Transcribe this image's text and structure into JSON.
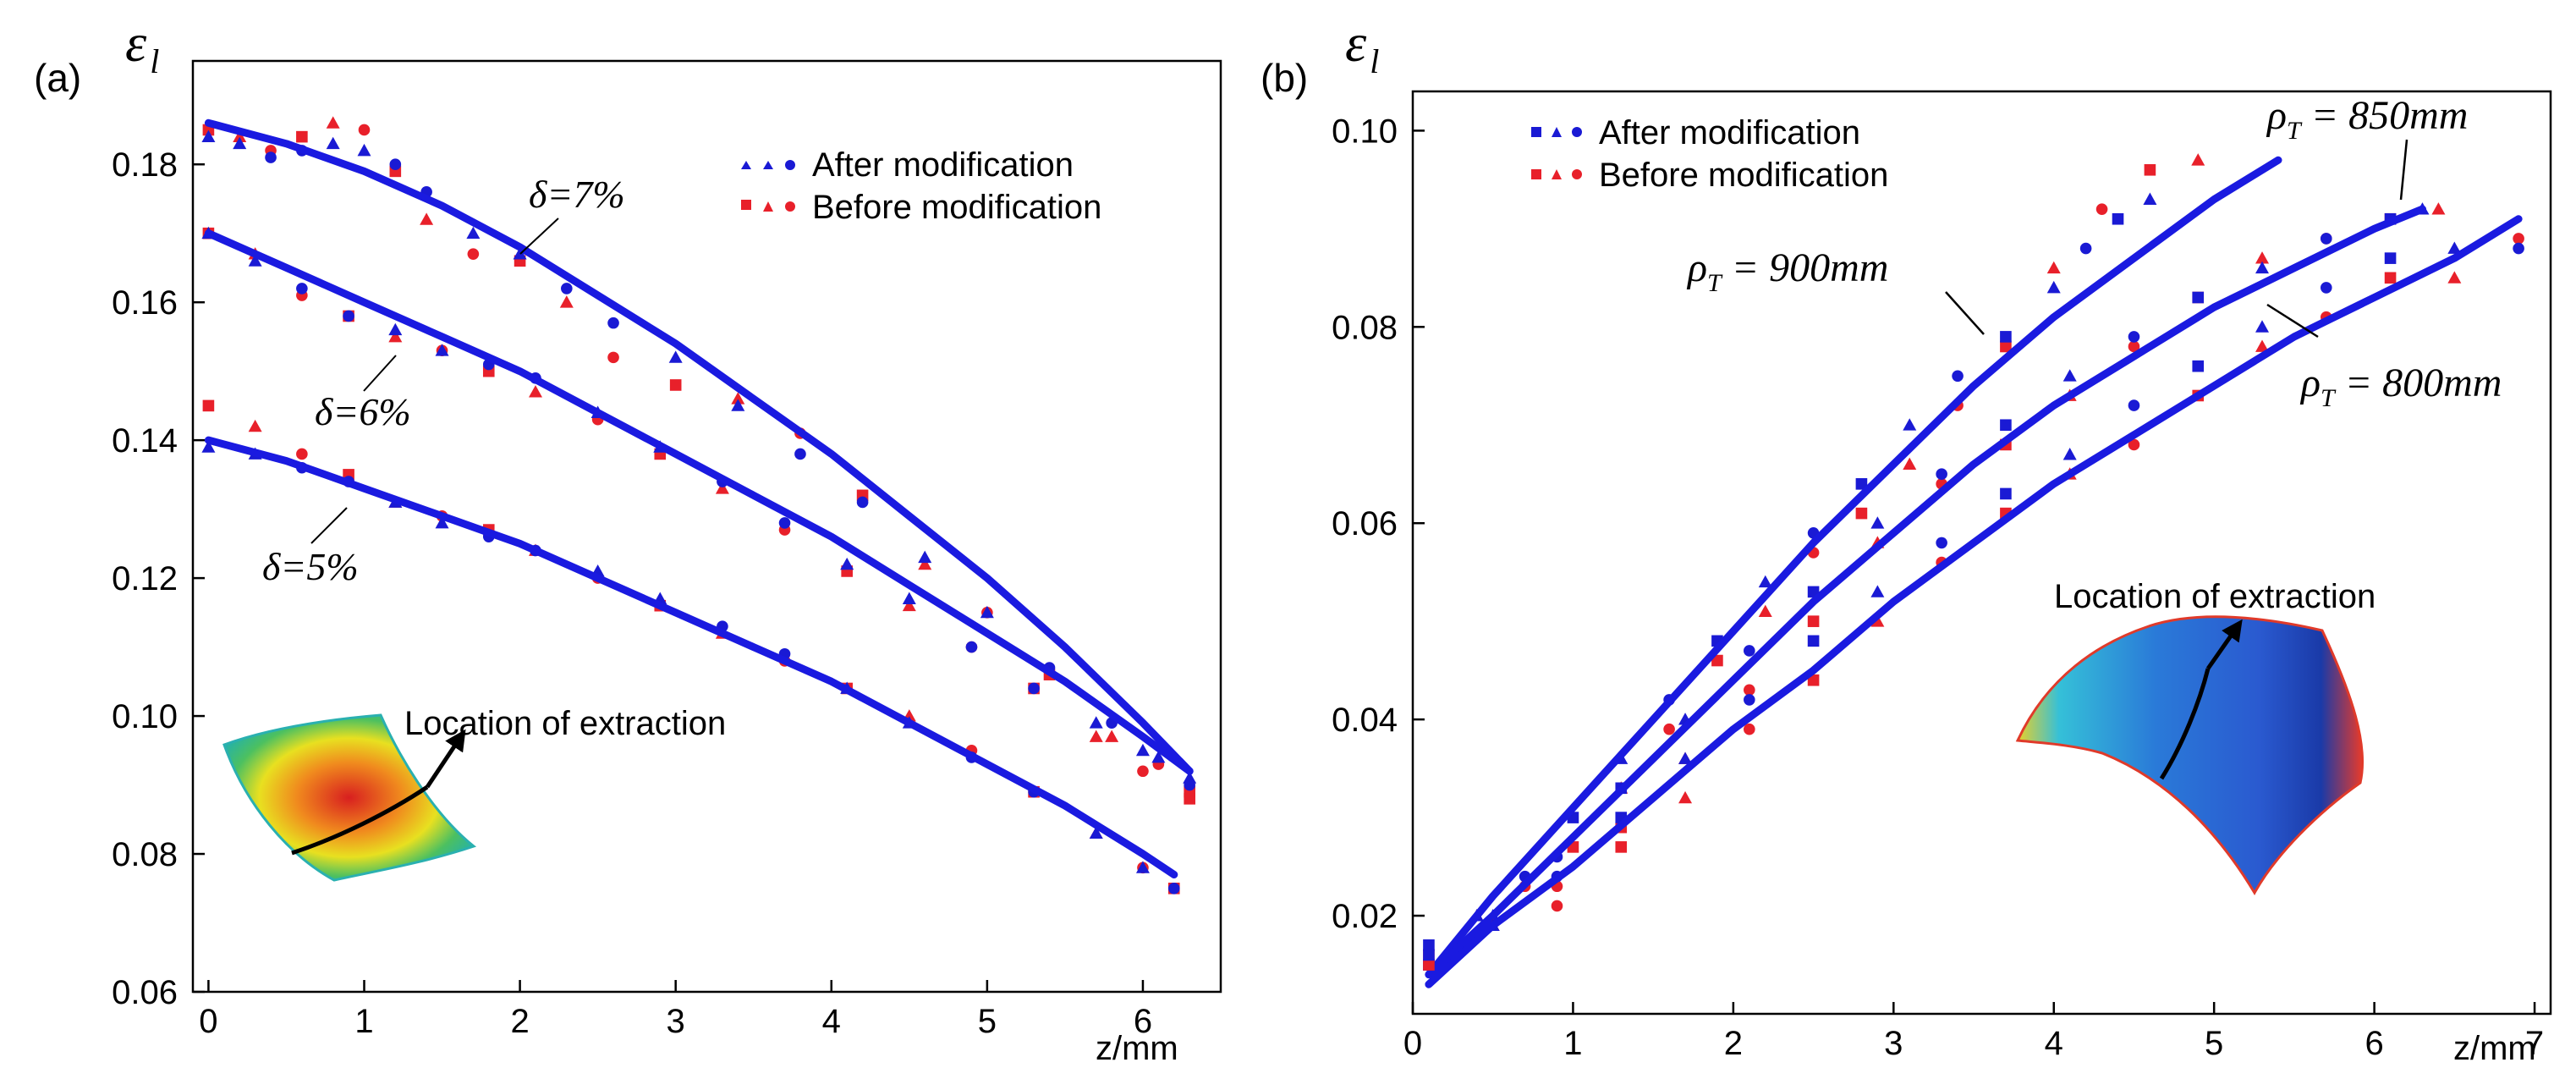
{
  "colors": {
    "blue": "#1a1ad4",
    "red": "#e8202a",
    "fit": "#1a1ae0",
    "axis": "#000000"
  },
  "chart_data": [
    {
      "type": "scatter",
      "panel_label": "(a)",
      "ylabel": "ε",
      "ylabel_sub": "l",
      "xlabel": "z/mm",
      "xlim": [
        -0.1,
        6.5
      ],
      "ylim": [
        0.06,
        0.195
      ],
      "xticks": [
        "0",
        "1",
        "2",
        "3",
        "4",
        "5",
        "6"
      ],
      "xtick_values": [
        0,
        1,
        2,
        3,
        4,
        5,
        6
      ],
      "yticks": [
        "0.06",
        "0.08",
        "0.10",
        "0.12",
        "0.14",
        "0.16",
        "0.18"
      ],
      "ytick_values": [
        0.06,
        0.08,
        0.1,
        0.12,
        0.14,
        0.16,
        0.18
      ],
      "legend": {
        "placement": "top-right",
        "entries": [
          {
            "label": "After modification",
            "color": "blue"
          },
          {
            "label": "Before modification",
            "color": "red"
          }
        ]
      },
      "annotations": [
        "δ=7%",
        "δ=6%",
        "δ=5%"
      ],
      "inset_label": "Location of extraction",
      "series": [
        {
          "name": "δ=7%",
          "fit": {
            "x": [
              0,
              0.5,
              1,
              1.5,
              2,
              2.5,
              3,
              3.5,
              4,
              4.5,
              5,
              5.5,
              6,
              6.3
            ],
            "y": [
              0.186,
              0.183,
              0.179,
              0.174,
              0.168,
              0.161,
              0.154,
              0.146,
              0.138,
              0.129,
              0.12,
              0.11,
              0.099,
              0.092
            ]
          },
          "after": {
            "x": [
              0,
              0.2,
              0.4,
              0.6,
              0.8,
              1.0,
              1.2,
              1.4,
              1.7,
              2.0,
              2.3,
              2.6,
              3.0,
              3.4,
              3.8,
              4.2,
              4.6,
              5.0,
              5.4,
              5.8,
              6.1,
              6.3
            ],
            "y": [
              0.184,
              0.183,
              0.181,
              0.182,
              0.183,
              0.182,
              0.18,
              0.176,
              0.17,
              0.167,
              0.162,
              0.157,
              0.152,
              0.145,
              0.138,
              0.131,
              0.123,
              0.115,
              0.107,
              0.099,
              0.094,
              0.091
            ]
          },
          "before": {
            "x": [
              0,
              0.2,
              0.4,
              0.6,
              0.8,
              1.0,
              1.2,
              1.4,
              1.7,
              2.0,
              2.3,
              2.6,
              3.0,
              3.4,
              3.8,
              4.2,
              4.6,
              5.0,
              5.4,
              5.8,
              6.1,
              6.3
            ],
            "y": [
              0.185,
              0.184,
              0.182,
              0.184,
              0.186,
              0.185,
              0.179,
              0.172,
              0.167,
              0.166,
              0.16,
              0.152,
              0.148,
              0.146,
              0.141,
              0.132,
              0.122,
              0.115,
              0.106,
              0.097,
              0.093,
              0.089
            ]
          }
        },
        {
          "name": "δ=6%",
          "fit": {
            "x": [
              0,
              0.5,
              1,
              1.5,
              2,
              2.5,
              3,
              3.5,
              4,
              4.5,
              5,
              5.5,
              6,
              6.3
            ],
            "y": [
              0.17,
              0.165,
              0.16,
              0.155,
              0.15,
              0.144,
              0.138,
              0.132,
              0.126,
              0.119,
              0.112,
              0.105,
              0.097,
              0.092
            ]
          },
          "after": {
            "x": [
              0,
              0.3,
              0.6,
              0.9,
              1.2,
              1.5,
              1.8,
              2.1,
              2.5,
              2.9,
              3.3,
              3.7,
              4.1,
              4.5,
              4.9,
              5.3,
              5.7,
              6.0,
              6.3
            ],
            "y": [
              0.17,
              0.166,
              0.162,
              0.158,
              0.156,
              0.153,
              0.151,
              0.149,
              0.144,
              0.139,
              0.134,
              0.128,
              0.122,
              0.117,
              0.11,
              0.104,
              0.099,
              0.095,
              0.09
            ]
          },
          "before": {
            "x": [
              0,
              0.3,
              0.6,
              0.9,
              1.2,
              1.5,
              1.8,
              2.1,
              2.5,
              2.9,
              3.3,
              3.7,
              4.1,
              4.5,
              4.9,
              5.3,
              5.7,
              6.0,
              6.3
            ],
            "y": [
              0.17,
              0.167,
              0.161,
              0.158,
              0.155,
              0.153,
              0.15,
              0.147,
              0.143,
              0.138,
              0.133,
              0.127,
              0.121,
              0.116,
              0.11,
              0.104,
              0.097,
              0.092,
              0.088
            ]
          }
        },
        {
          "name": "δ=5%",
          "fit": {
            "x": [
              0,
              0.5,
              1,
              1.5,
              2,
              2.5,
              3,
              3.5,
              4,
              4.5,
              5,
              5.5,
              6,
              6.2
            ],
            "y": [
              0.14,
              0.137,
              0.133,
              0.129,
              0.125,
              0.12,
              0.115,
              0.11,
              0.105,
              0.099,
              0.093,
              0.087,
              0.08,
              0.077
            ]
          },
          "after": {
            "x": [
              0,
              0.3,
              0.6,
              0.9,
              1.2,
              1.5,
              1.8,
              2.1,
              2.5,
              2.9,
              3.3,
              3.7,
              4.1,
              4.5,
              4.9,
              5.3,
              5.7,
              6.0,
              6.2
            ],
            "y": [
              0.139,
              0.138,
              0.136,
              0.134,
              0.131,
              0.128,
              0.126,
              0.124,
              0.121,
              0.117,
              0.113,
              0.109,
              0.104,
              0.099,
              0.094,
              0.089,
              0.083,
              0.078,
              0.075
            ]
          },
          "before": {
            "x": [
              0,
              0.3,
              0.6,
              0.9,
              1.2,
              1.5,
              1.8,
              2.1,
              2.5,
              2.9,
              3.3,
              3.7,
              4.1,
              4.5,
              4.9,
              5.3,
              5.7,
              6.0,
              6.2
            ],
            "y": [
              0.145,
              0.142,
              0.138,
              0.135,
              0.131,
              0.129,
              0.127,
              0.124,
              0.12,
              0.116,
              0.112,
              0.108,
              0.104,
              0.1,
              0.095,
              0.089,
              0.083,
              0.078,
              0.075
            ]
          }
        }
      ]
    },
    {
      "type": "scatter",
      "panel_label": "(b)",
      "ylabel": "ε",
      "ylabel_sub": "l",
      "xlabel": "z/mm",
      "xlim": [
        0,
        7.1
      ],
      "ylim": [
        0.01,
        0.104
      ],
      "xticks": [
        "0",
        "1",
        "2",
        "3",
        "4",
        "5",
        "6",
        "7"
      ],
      "xtick_values": [
        0,
        1,
        2,
        3,
        4,
        5,
        6,
        7
      ],
      "yticks": [
        "0.02",
        "0.04",
        "0.06",
        "0.08",
        "0.10"
      ],
      "ytick_values": [
        0.02,
        0.04,
        0.06,
        0.08,
        0.1
      ],
      "legend": {
        "placement": "top-left",
        "entries": [
          {
            "label": "After modification",
            "color": "blue"
          },
          {
            "label": "Before modification",
            "color": "red"
          }
        ]
      },
      "annotations": [
        "ρ",
        "T",
        " = 850mm",
        " = 900mm",
        " = 800mm"
      ],
      "inset_label": "Location of extraction",
      "series": [
        {
          "name": "ρT = 900mm",
          "fit": {
            "x": [
              0.1,
              0.5,
              1,
              1.5,
              2,
              2.5,
              3,
              3.5,
              4,
              4.5,
              5,
              5.4
            ],
            "y": [
              0.014,
              0.022,
              0.031,
              0.04,
              0.049,
              0.058,
              0.066,
              0.074,
              0.081,
              0.087,
              0.093,
              0.097
            ]
          },
          "after": {
            "x": [
              0.1,
              0.4,
              0.7,
              1.0,
              1.3,
              1.6,
              1.9,
              2.2,
              2.5,
              2.8,
              3.1,
              3.4,
              3.7,
              4.0,
              4.2,
              4.4,
              4.6
            ],
            "y": [
              0.017,
              0.02,
              0.024,
              0.03,
              0.036,
              0.042,
              0.048,
              0.054,
              0.059,
              0.064,
              0.07,
              0.075,
              0.079,
              0.084,
              0.088,
              0.091,
              0.093
            ]
          },
          "before": {
            "x": [
              0.1,
              0.4,
              0.7,
              1.0,
              1.3,
              1.6,
              1.9,
              2.2,
              2.5,
              2.8,
              3.1,
              3.4,
              3.7,
              4.0,
              4.3,
              4.6,
              4.9
            ],
            "y": [
              0.016,
              0.02,
              0.023,
              0.027,
              0.033,
              0.039,
              0.046,
              0.051,
              0.057,
              0.061,
              0.066,
              0.072,
              0.078,
              0.086,
              0.092,
              0.096,
              0.097
            ]
          }
        },
        {
          "name": "ρT = 850mm",
          "fit": {
            "x": [
              0.1,
              0.5,
              1,
              1.5,
              2,
              2.5,
              3,
              3.5,
              4,
              4.5,
              5,
              5.5,
              6,
              6.3
            ],
            "y": [
              0.014,
              0.02,
              0.028,
              0.036,
              0.044,
              0.052,
              0.059,
              0.066,
              0.072,
              0.077,
              0.082,
              0.086,
              0.09,
              0.092
            ]
          },
          "after": {
            "x": [
              0.1,
              0.5,
              0.9,
              1.3,
              1.7,
              2.1,
              2.5,
              2.9,
              3.3,
              3.7,
              4.1,
              4.5,
              4.9,
              5.3,
              5.7,
              6.1,
              6.3
            ],
            "y": [
              0.015,
              0.02,
              0.026,
              0.033,
              0.04,
              0.047,
              0.053,
              0.06,
              0.065,
              0.07,
              0.075,
              0.079,
              0.083,
              0.086,
              0.089,
              0.091,
              0.092
            ]
          },
          "before": {
            "x": [
              0.1,
              0.5,
              0.9,
              1.3,
              1.7,
              2.1,
              2.5,
              2.9,
              3.3,
              3.7,
              4.1,
              4.5,
              4.9,
              5.3,
              5.7,
              6.1,
              6.4
            ],
            "y": [
              0.015,
              0.019,
              0.023,
              0.029,
              0.036,
              0.043,
              0.05,
              0.058,
              0.064,
              0.068,
              0.073,
              0.078,
              0.083,
              0.087,
              0.089,
              0.091,
              0.092
            ]
          }
        },
        {
          "name": "ρT = 800mm",
          "fit": {
            "x": [
              0.1,
              0.5,
              1,
              1.5,
              2,
              2.5,
              3,
              3.5,
              4,
              4.5,
              5,
              5.5,
              6,
              6.5,
              6.9
            ],
            "y": [
              0.013,
              0.019,
              0.025,
              0.032,
              0.039,
              0.045,
              0.052,
              0.058,
              0.064,
              0.069,
              0.074,
              0.079,
              0.083,
              0.087,
              0.091
            ]
          },
          "after": {
            "x": [
              0.1,
              0.5,
              0.9,
              1.3,
              1.7,
              2.1,
              2.5,
              2.9,
              3.3,
              3.7,
              4.1,
              4.5,
              4.9,
              5.3,
              5.7,
              6.1,
              6.5,
              6.9
            ],
            "y": [
              0.016,
              0.019,
              0.024,
              0.03,
              0.036,
              0.042,
              0.048,
              0.053,
              0.058,
              0.063,
              0.067,
              0.072,
              0.076,
              0.08,
              0.084,
              0.087,
              0.088,
              0.088
            ]
          },
          "before": {
            "x": [
              0.1,
              0.5,
              0.9,
              1.3,
              1.7,
              2.1,
              2.5,
              2.9,
              3.3,
              3.7,
              4.1,
              4.5,
              4.9,
              5.3,
              5.7,
              6.1,
              6.5,
              6.9
            ],
            "y": [
              0.015,
              0.019,
              0.021,
              0.027,
              0.032,
              0.039,
              0.044,
              0.05,
              0.056,
              0.061,
              0.065,
              0.068,
              0.073,
              0.078,
              0.081,
              0.085,
              0.085,
              0.089
            ]
          }
        }
      ]
    }
  ]
}
